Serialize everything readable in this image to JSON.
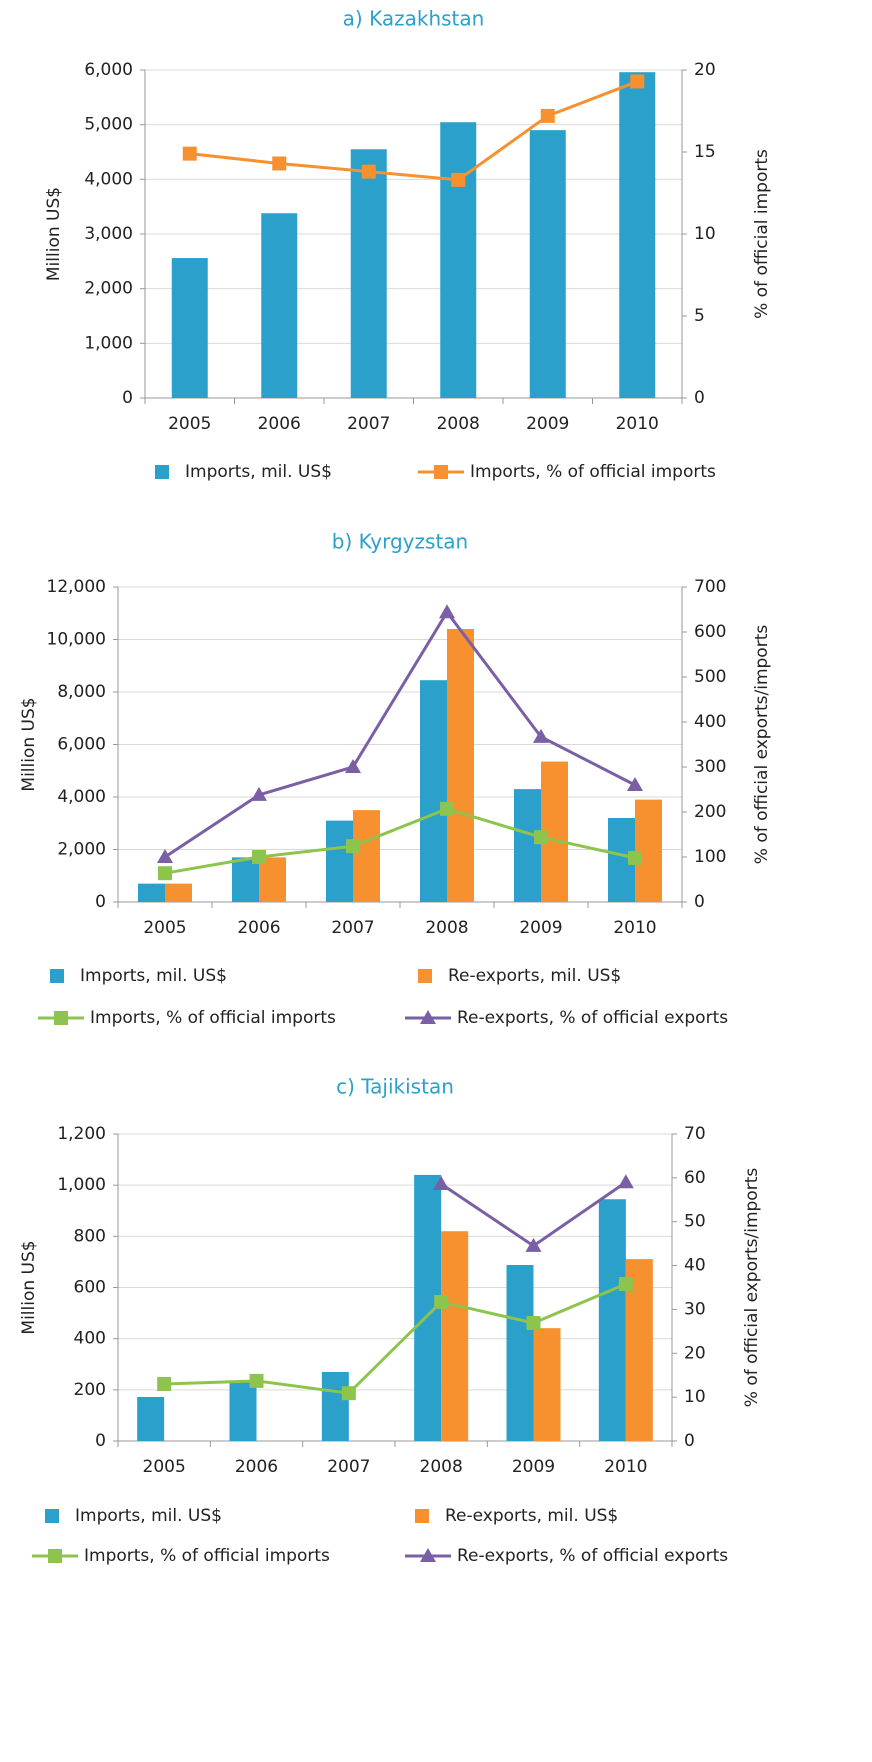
{
  "chart_data": [
    {
      "type": "combo",
      "title": "a) Kazakhstan",
      "ylabel": "Million US$",
      "y2label": "% of official  imports",
      "categories": [
        "2005",
        "2006",
        "2007",
        "2008",
        "2009",
        "2010"
      ],
      "ylim": [
        0,
        6000
      ],
      "yticks": [
        0,
        {
          "value": 1000,
          "label": "1,000"
        },
        {
          "value": 2000,
          "label": "2,000"
        },
        {
          "value": 3000,
          "label": "3,000"
        },
        {
          "value": 4000,
          "label": "4,000"
        },
        {
          "value": 5000,
          "label": "5,000"
        },
        {
          "value": 6000,
          "label": "6,000"
        }
      ],
      "y2lim": [
        0,
        20
      ],
      "y2ticks": [
        0,
        5,
        10,
        15,
        20
      ],
      "grid": true,
      "legend": "bottom",
      "series": [
        {
          "name": "Imports, mil. US$",
          "type": "bar",
          "color": "#2ba0cb",
          "values": [
            2560,
            3380,
            4550,
            5045,
            4900,
            5960
          ]
        },
        {
          "name": "Imports, % of official imports",
          "type": "line",
          "marker": "square",
          "axis": "y2",
          "color": "#f7902f",
          "values": [
            14.9,
            14.3,
            13.8,
            13.3,
            17.2,
            19.3
          ]
        }
      ]
    },
    {
      "type": "combo",
      "title": "b) Kyrgyzstan",
      "ylabel": "Million US$",
      "y2label": "% of official  exports/imports",
      "categories": [
        "2005",
        "2006",
        "2007",
        "2008",
        "2009",
        "2010"
      ],
      "ylim": [
        0,
        12000
      ],
      "yticks": [
        0,
        {
          "value": 2000,
          "label": "2,000"
        },
        {
          "value": 4000,
          "label": "4,000"
        },
        {
          "value": 6000,
          "label": "6,000"
        },
        {
          "value": 8000,
          "label": "8,000"
        },
        {
          "value": 10000,
          "label": "10,000"
        },
        {
          "value": 12000,
          "label": "12,000"
        }
      ],
      "y2lim": [
        0,
        700
      ],
      "y2ticks": [
        0,
        100,
        200,
        300,
        400,
        500,
        600,
        700
      ],
      "grid": true,
      "legend": "bottom",
      "series": [
        {
          "name": "Imports, mil. US$",
          "type": "bar",
          "color": "#2ba0cb",
          "values": [
            700,
            1700,
            3100,
            8450,
            4300,
            3200
          ]
        },
        {
          "name": "Re-exports, mil. US$",
          "type": "bar",
          "color": "#f7902f",
          "values": [
            700,
            1700,
            3500,
            10400,
            5350,
            3900
          ]
        },
        {
          "name": "Imports, % of official imports",
          "type": "line",
          "marker": "square",
          "axis": "y2",
          "color": "#8dc44e",
          "values": [
            64,
            100,
            124,
            207,
            144,
            98
          ]
        },
        {
          "name": "Re-exports, % of official exports",
          "type": "line",
          "marker": "triangle",
          "axis": "y2",
          "color": "#7b5fa5",
          "values": [
            100,
            238,
            300,
            644,
            367,
            260
          ]
        }
      ]
    },
    {
      "type": "combo",
      "title": "c) Tajikistan",
      "ylabel": "Million US$",
      "y2label": "% of official  exports/imports",
      "categories": [
        "2005",
        "2006",
        "2007",
        "2008",
        "2009",
        "2010"
      ],
      "ylim": [
        0,
        1200
      ],
      "yticks": [
        0,
        200,
        400,
        600,
        800,
        {
          "value": 1000,
          "label": "1,000"
        },
        {
          "value": 1200,
          "label": "1,200"
        }
      ],
      "y2lim": [
        0,
        70
      ],
      "y2ticks": [
        0,
        10,
        20,
        30,
        40,
        50,
        60,
        70
      ],
      "grid": true,
      "legend": "bottom",
      "series": [
        {
          "name": "Imports, mil. US$",
          "type": "bar",
          "color": "#2ba0cb",
          "values": [
            172,
            230,
            270,
            1040,
            688,
            945
          ]
        },
        {
          "name": "Re-exports, mil. US$",
          "type": "bar",
          "color": "#f7902f",
          "values": [
            null,
            null,
            null,
            820,
            441,
            711
          ]
        },
        {
          "name": "Imports, % of official imports",
          "type": "line",
          "marker": "square",
          "axis": "y2",
          "color": "#8dc44e",
          "values": [
            13,
            13.7,
            10.9,
            31.7,
            26.9,
            35.8
          ]
        },
        {
          "name": "Re-exports, % of official exports",
          "type": "line",
          "marker": "triangle",
          "axis": "y2",
          "color": "#7b5fa5",
          "values": [
            null,
            null,
            null,
            58.6,
            44.5,
            59
          ]
        }
      ]
    }
  ]
}
